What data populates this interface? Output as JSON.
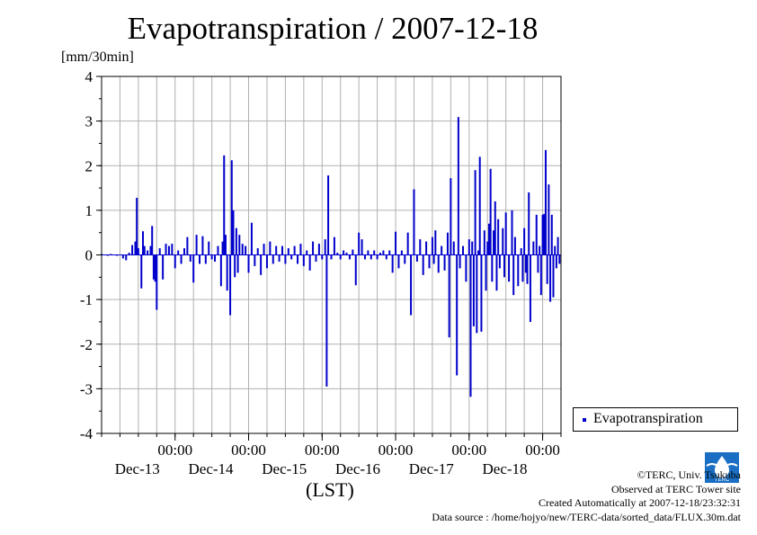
{
  "title": "Evapotranspiration / 2007-12-18",
  "legend": {
    "label": "Evapotranspiration"
  },
  "credits": {
    "copyright": "©TERC, Univ. Tsukuba",
    "site": "Observed at TERC Tower site",
    "created": "Created Automatically at 2007-12-18/23:32:31",
    "source": "Data source : /home/hojyo/new/TERC-data/sorted_data/FLUX.30m.dat"
  },
  "logo": {
    "text": "TERC"
  },
  "colors": {
    "series": "#0000cc",
    "grid": "#b0b0b0",
    "axis": "#000000"
  },
  "chart_data": {
    "type": "bar",
    "title": "Evapotranspiration / 2007-12-18",
    "ylabel": "[mm/30min]",
    "xlabel": "(LST)",
    "ylim": [
      -4,
      4
    ],
    "yticks": [
      "4",
      "3",
      "2",
      "1",
      "0",
      "-1",
      "-2",
      "-3",
      "-4"
    ],
    "xlim": [
      "2007-12-12 18:00",
      "2007-12-18 24:00"
    ],
    "xticks": [
      {
        "time": "00:00",
        "date": "Dec-13"
      },
      {
        "time": "00:00",
        "date": "Dec-14"
      },
      {
        "time": "00:00",
        "date": "Dec-15"
      },
      {
        "time": "00:00",
        "date": "Dec-16"
      },
      {
        "time": "00:00",
        "date": "Dec-17"
      },
      {
        "time": "00:00",
        "date": "Dec-18"
      }
    ],
    "grid": true,
    "legend_position": "bottom-right",
    "series": [
      {
        "name": "Evapotranspiration",
        "points": [
          [
            "2007-12-12 18:00",
            0.02
          ],
          [
            "2007-12-12 19:00",
            0.01
          ],
          [
            "2007-12-12 20:00",
            -0.02
          ],
          [
            "2007-12-12 21:00",
            0.02
          ],
          [
            "2007-12-12 22:00",
            0.01
          ],
          [
            "2007-12-12 23:00",
            -0.02
          ],
          [
            "2007-12-13 00:00",
            0.01
          ],
          [
            "2007-12-13 01:00",
            -0.08
          ],
          [
            "2007-12-13 02:00",
            -0.12
          ],
          [
            "2007-12-13 03:00",
            0.05
          ],
          [
            "2007-12-13 04:00",
            0.22
          ],
          [
            "2007-12-13 05:00",
            0.3
          ],
          [
            "2007-12-13 05:30",
            1.28
          ],
          [
            "2007-12-13 06:00",
            0.15
          ],
          [
            "2007-12-13 07:00",
            -0.75
          ],
          [
            "2007-12-13 07:30",
            0.53
          ],
          [
            "2007-12-13 08:00",
            0.2
          ],
          [
            "2007-12-13 09:00",
            0.1
          ],
          [
            "2007-12-13 10:00",
            0.2
          ],
          [
            "2007-12-13 10:30",
            0.65
          ],
          [
            "2007-12-13 11:00",
            -0.55
          ],
          [
            "2007-12-13 11:30",
            -0.6
          ],
          [
            "2007-12-13 12:00",
            -1.23
          ],
          [
            "2007-12-13 13:00",
            0.15
          ],
          [
            "2007-12-13 14:00",
            -0.55
          ],
          [
            "2007-12-13 15:00",
            0.25
          ],
          [
            "2007-12-13 16:00",
            0.2
          ],
          [
            "2007-12-13 17:00",
            0.25
          ],
          [
            "2007-12-13 18:00",
            -0.3
          ],
          [
            "2007-12-13 19:00",
            0.1
          ],
          [
            "2007-12-13 20:00",
            -0.2
          ],
          [
            "2007-12-13 21:00",
            0.15
          ],
          [
            "2007-12-13 22:00",
            0.4
          ],
          [
            "2007-12-13 23:00",
            -0.15
          ],
          [
            "2007-12-14 00:00",
            -0.62
          ],
          [
            "2007-12-14 01:00",
            0.45
          ],
          [
            "2007-12-14 02:00",
            -0.2
          ],
          [
            "2007-12-14 03:00",
            0.42
          ],
          [
            "2007-12-14 04:00",
            -0.2
          ],
          [
            "2007-12-14 05:00",
            0.3
          ],
          [
            "2007-12-14 06:00",
            -0.1
          ],
          [
            "2007-12-14 07:00",
            -0.15
          ],
          [
            "2007-12-14 08:00",
            0.2
          ],
          [
            "2007-12-14 09:00",
            -0.7
          ],
          [
            "2007-12-14 09:30",
            0.3
          ],
          [
            "2007-12-14 10:00",
            2.23
          ],
          [
            "2007-12-14 10:30",
            0.45
          ],
          [
            "2007-12-14 11:00",
            -0.8
          ],
          [
            "2007-12-14 12:00",
            -1.35
          ],
          [
            "2007-12-14 12:30",
            2.12
          ],
          [
            "2007-12-14 13:00",
            1.0
          ],
          [
            "2007-12-14 13:30",
            -0.5
          ],
          [
            "2007-12-14 14:00",
            0.6
          ],
          [
            "2007-12-14 14:30",
            -0.4
          ],
          [
            "2007-12-14 15:00",
            0.45
          ],
          [
            "2007-12-14 16:00",
            0.25
          ],
          [
            "2007-12-14 17:00",
            0.2
          ],
          [
            "2007-12-14 18:00",
            -0.4
          ],
          [
            "2007-12-14 19:00",
            0.72
          ],
          [
            "2007-12-14 20:00",
            -0.25
          ],
          [
            "2007-12-14 21:00",
            0.15
          ],
          [
            "2007-12-14 22:00",
            -0.45
          ],
          [
            "2007-12-14 23:00",
            0.25
          ],
          [
            "2007-12-15 00:00",
            -0.3
          ],
          [
            "2007-12-15 01:00",
            0.3
          ],
          [
            "2007-12-15 02:00",
            -0.2
          ],
          [
            "2007-12-15 03:00",
            0.2
          ],
          [
            "2007-12-15 04:00",
            -0.15
          ],
          [
            "2007-12-15 05:00",
            0.2
          ],
          [
            "2007-12-15 06:00",
            -0.2
          ],
          [
            "2007-12-15 07:00",
            0.15
          ],
          [
            "2007-12-15 08:00",
            -0.1
          ],
          [
            "2007-12-15 09:00",
            0.2
          ],
          [
            "2007-12-15 10:00",
            -0.2
          ],
          [
            "2007-12-15 11:00",
            0.25
          ],
          [
            "2007-12-15 12:00",
            -0.25
          ],
          [
            "2007-12-15 13:00",
            0.1
          ],
          [
            "2007-12-15 14:00",
            -0.35
          ],
          [
            "2007-12-15 15:00",
            0.3
          ],
          [
            "2007-12-15 16:00",
            -0.15
          ],
          [
            "2007-12-15 17:00",
            0.25
          ],
          [
            "2007-12-15 18:00",
            -0.1
          ],
          [
            "2007-12-15 19:00",
            0.35
          ],
          [
            "2007-12-15 19:30",
            -2.95
          ],
          [
            "2007-12-15 20:00",
            1.78
          ],
          [
            "2007-12-15 21:00",
            -0.1
          ],
          [
            "2007-12-15 22:00",
            0.4
          ],
          [
            "2007-12-15 23:00",
            0.05
          ],
          [
            "2007-12-16 00:00",
            -0.1
          ],
          [
            "2007-12-16 01:00",
            0.1
          ],
          [
            "2007-12-16 02:00",
            0.05
          ],
          [
            "2007-12-16 03:00",
            -0.1
          ],
          [
            "2007-12-16 04:00",
            0.12
          ],
          [
            "2007-12-16 05:00",
            -0.68
          ],
          [
            "2007-12-16 06:00",
            0.5
          ],
          [
            "2007-12-16 07:00",
            0.35
          ],
          [
            "2007-12-16 08:00",
            -0.1
          ],
          [
            "2007-12-16 09:00",
            0.1
          ],
          [
            "2007-12-16 10:00",
            -0.1
          ],
          [
            "2007-12-16 11:00",
            0.1
          ],
          [
            "2007-12-16 12:00",
            -0.1
          ],
          [
            "2007-12-16 13:00",
            0.05
          ],
          [
            "2007-12-16 14:00",
            0.1
          ],
          [
            "2007-12-16 15:00",
            -0.1
          ],
          [
            "2007-12-16 16:00",
            0.1
          ],
          [
            "2007-12-16 17:00",
            -0.4
          ],
          [
            "2007-12-16 18:00",
            0.52
          ],
          [
            "2007-12-16 19:00",
            -0.3
          ],
          [
            "2007-12-16 20:00",
            0.1
          ],
          [
            "2007-12-16 21:00",
            -0.2
          ],
          [
            "2007-12-16 22:00",
            0.5
          ],
          [
            "2007-12-16 23:00",
            -1.35
          ],
          [
            "2007-12-17 00:00",
            1.47
          ],
          [
            "2007-12-17 01:00",
            -0.15
          ],
          [
            "2007-12-17 02:00",
            0.35
          ],
          [
            "2007-12-17 03:00",
            -0.45
          ],
          [
            "2007-12-17 04:00",
            0.3
          ],
          [
            "2007-12-17 05:00",
            -0.3
          ],
          [
            "2007-12-17 06:00",
            0.4
          ],
          [
            "2007-12-17 06:30",
            -0.2
          ],
          [
            "2007-12-17 07:00",
            0.55
          ],
          [
            "2007-12-17 08:00",
            -0.4
          ],
          [
            "2007-12-17 09:00",
            0.2
          ],
          [
            "2007-12-17 10:00",
            -0.35
          ],
          [
            "2007-12-17 11:00",
            0.5
          ],
          [
            "2007-12-17 11:30",
            -1.85
          ],
          [
            "2007-12-17 12:00",
            1.72
          ],
          [
            "2007-12-17 13:00",
            0.3
          ],
          [
            "2007-12-17 14:00",
            -2.7
          ],
          [
            "2007-12-17 14:30",
            3.09
          ],
          [
            "2007-12-17 15:00",
            -0.3
          ],
          [
            "2007-12-17 16:00",
            0.2
          ],
          [
            "2007-12-17 17:00",
            -0.6
          ],
          [
            "2007-12-17 18:00",
            0.35
          ],
          [
            "2007-12-17 18:30",
            -3.18
          ],
          [
            "2007-12-17 19:00",
            0.3
          ],
          [
            "2007-12-17 19:30",
            -1.6
          ],
          [
            "2007-12-17 20:00",
            1.9
          ],
          [
            "2007-12-17 20:30",
            -1.75
          ],
          [
            "2007-12-17 21:00",
            0.1
          ],
          [
            "2007-12-17 21:30",
            2.2
          ],
          [
            "2007-12-17 22:00",
            -1.72
          ],
          [
            "2007-12-17 23:00",
            0.55
          ],
          [
            "2007-12-17 23:30",
            -0.8
          ],
          [
            "2007-12-18 00:00",
            0.3
          ],
          [
            "2007-12-18 00:30",
            0.7
          ],
          [
            "2007-12-18 01:00",
            1.93
          ],
          [
            "2007-12-18 01:30",
            -0.6
          ],
          [
            "2007-12-18 02:00",
            0.55
          ],
          [
            "2007-12-18 02:30",
            1.2
          ],
          [
            "2007-12-18 03:00",
            -0.8
          ],
          [
            "2007-12-18 03:30",
            0.8
          ],
          [
            "2007-12-18 04:00",
            -0.3
          ],
          [
            "2007-12-18 05:00",
            0.6
          ],
          [
            "2007-12-18 05:30",
            -0.5
          ],
          [
            "2007-12-18 06:00",
            0.95
          ],
          [
            "2007-12-18 07:00",
            -0.6
          ],
          [
            "2007-12-18 08:00",
            1.0
          ],
          [
            "2007-12-18 08:30",
            -0.9
          ],
          [
            "2007-12-18 09:00",
            0.4
          ],
          [
            "2007-12-18 10:00",
            -0.7
          ],
          [
            "2007-12-18 11:00",
            0.15
          ],
          [
            "2007-12-18 11:30",
            -0.6
          ],
          [
            "2007-12-18 12:00",
            0.6
          ],
          [
            "2007-12-18 12:30",
            -0.4
          ],
          [
            "2007-12-18 13:00",
            -0.65
          ],
          [
            "2007-12-18 13:30",
            1.4
          ],
          [
            "2007-12-18 14:00",
            -1.5
          ],
          [
            "2007-12-18 15:00",
            0.3
          ],
          [
            "2007-12-18 16:00",
            0.9
          ],
          [
            "2007-12-18 16:30",
            -0.4
          ],
          [
            "2007-12-18 17:00",
            0.2
          ],
          [
            "2007-12-18 17:30",
            -0.9
          ],
          [
            "2007-12-18 18:00",
            0.9
          ],
          [
            "2007-12-18 18:30",
            0.92
          ],
          [
            "2007-12-18 19:00",
            2.35
          ],
          [
            "2007-12-18 19:30",
            -0.65
          ],
          [
            "2007-12-18 20:00",
            1.58
          ],
          [
            "2007-12-18 20:30",
            -1.05
          ],
          [
            "2007-12-18 21:00",
            0.9
          ],
          [
            "2007-12-18 21:30",
            -0.95
          ],
          [
            "2007-12-18 22:00",
            0.2
          ],
          [
            "2007-12-18 22:30",
            -0.3
          ],
          [
            "2007-12-18 23:00",
            0.4
          ],
          [
            "2007-12-18 23:30",
            -0.2
          ]
        ]
      }
    ]
  }
}
